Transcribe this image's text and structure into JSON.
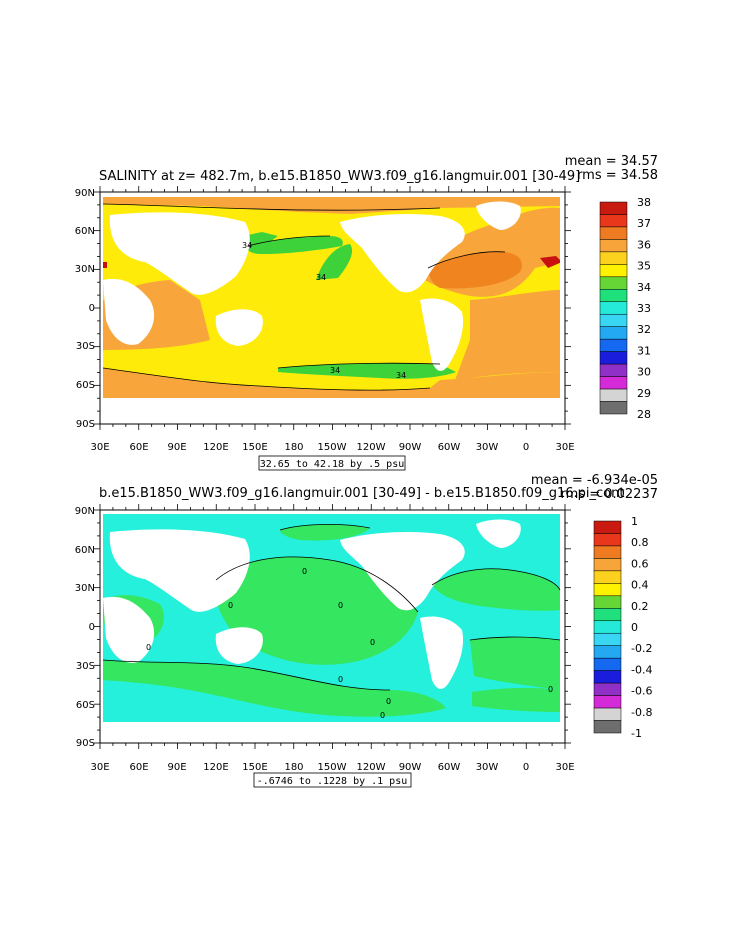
{
  "panel1": {
    "title": "SALINITY at z= 482.7m, b.e15.B1850_WW3.f09_g16.langmuir.001 [30-49]",
    "mean_label": "mean = 34.57",
    "rms_label": "rms = 34.58",
    "range_label": "32.65 to 42.18 by .5 psu",
    "contour_labels": [
      "34",
      "34",
      "34",
      "34"
    ],
    "colorbar_labels": [
      "38",
      "37",
      "36",
      "35",
      "34",
      "33",
      "32",
      "31",
      "30",
      "29",
      "28"
    ],
    "colorbar_colors": [
      "#c81a10",
      "#e8371a",
      "#ee7b22",
      "#f7a53a",
      "#fdd21e",
      "#fff200",
      "#66d636",
      "#1fe07a",
      "#26ead9",
      "#38d6f2",
      "#22a9f2",
      "#1469f0",
      "#1b1ddc",
      "#9030c6",
      "#d52ad8",
      "#d4d4d4",
      "#6e6e6e"
    ]
  },
  "panel2": {
    "title": "b.e15.B1850_WW3.f09_g16.langmuir.001 [30-49] - b.e15.B1850.f09_g16.pi_cont",
    "mean_label": "mean = -6.934e-05",
    "rms_label": "rms = 0.02237",
    "range_label": "-.6746 to .1228 by .1 psu",
    "contour_labels": [
      "0",
      "0",
      "0",
      "0",
      "0",
      "0",
      "0",
      "0",
      "0"
    ],
    "colorbar_labels": [
      "1",
      "0.8",
      "0.6",
      "0.4",
      "0.2",
      "0",
      "-0.2",
      "-0.4",
      "-0.6",
      "-0.8",
      "-1"
    ],
    "colorbar_colors": [
      "#c81a10",
      "#e8371a",
      "#ee7b22",
      "#f7a53a",
      "#fdd21e",
      "#fff200",
      "#66d636",
      "#1fe07a",
      "#26ead9",
      "#38d6f2",
      "#22a9f2",
      "#1469f0",
      "#1b1ddc",
      "#9030c6",
      "#d52ad8",
      "#d4d4d4",
      "#6e6e6e"
    ]
  },
  "axes": {
    "lon_labels": [
      "30E",
      "60E",
      "90E",
      "120E",
      "150E",
      "180",
      "150W",
      "120W",
      "90W",
      "60W",
      "30W",
      "0",
      "30E"
    ],
    "lat_labels": [
      "90N",
      "60N",
      "30N",
      "0",
      "30S",
      "60S",
      "90S"
    ]
  },
  "colors": {
    "p1_main": "#ffeb0a",
    "p1_mid": "#f8a63c",
    "p1_high": "#f08520",
    "p1_low": "#3dd23a",
    "p1_cyan": "#1ff0e8",
    "p1_red": "#c8100e",
    "p2_green": "#35e660",
    "p2_cyan": "#25f0dc"
  }
}
